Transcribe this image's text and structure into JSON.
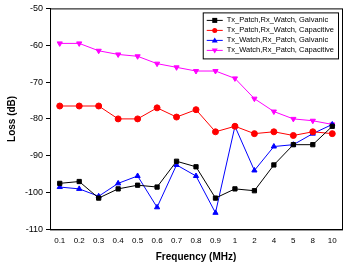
{
  "chart_data": {
    "type": "line",
    "x_label": "Frequency (MHz)",
    "y_label": "Loss (dB)",
    "categories": [
      "0.1",
      "0.2",
      "0.3",
      "0.4",
      "0.5",
      "0.6",
      "0.7",
      "0.8",
      "0.9",
      "1",
      "2",
      "4",
      "5",
      "8",
      "10"
    ],
    "series": [
      {
        "name": "Tx_Patch,Rx_Watch, Galvanic",
        "color": "#000000",
        "marker": "square",
        "line_style": "solid",
        "values": [
          -97.5,
          -97,
          -101.5,
          -99,
          -98,
          -98.5,
          -91.5,
          -93,
          -101.5,
          -99,
          -99.5,
          -92.5,
          -87,
          -87,
          -82
        ]
      },
      {
        "name": "Tx_Patch,Rx_Watch, Capacitive",
        "color": "#ff0000",
        "marker": "circle",
        "line_style": "solid",
        "values": [
          -76.5,
          -76.5,
          -76.5,
          -80,
          -80,
          -77,
          -79.5,
          -77.5,
          -83.5,
          -82,
          -84,
          -83.5,
          -84.5,
          -83.5,
          -84
        ]
      },
      {
        "name": "Tx_Watch,Rx_Patch, Galvanic",
        "color": "#0000ff",
        "marker": "triangle",
        "line_style": "solid",
        "values": [
          -98.5,
          -99,
          -101,
          -97.5,
          -95.5,
          -104,
          -92.5,
          -95.5,
          -105.5,
          -82,
          -94,
          -87.5,
          -87,
          -84,
          -81.5
        ]
      },
      {
        "name": "Tx_Watch,Rx_Patch, Capacitive",
        "color": "#ff00ff",
        "marker": "triangle_down",
        "line_style": "solid",
        "values": [
          -59.5,
          -59.5,
          -61.5,
          -62.5,
          -63,
          -65,
          -66,
          -67,
          -67,
          -69,
          -74.5,
          -78,
          -80,
          -80.5,
          -81.5
        ]
      }
    ],
    "ylim": [
      -110,
      -50
    ],
    "yticks": [
      -110,
      -100,
      -90,
      -80,
      -70,
      -60,
      -50
    ],
    "grid": false,
    "legend": "top-right"
  }
}
